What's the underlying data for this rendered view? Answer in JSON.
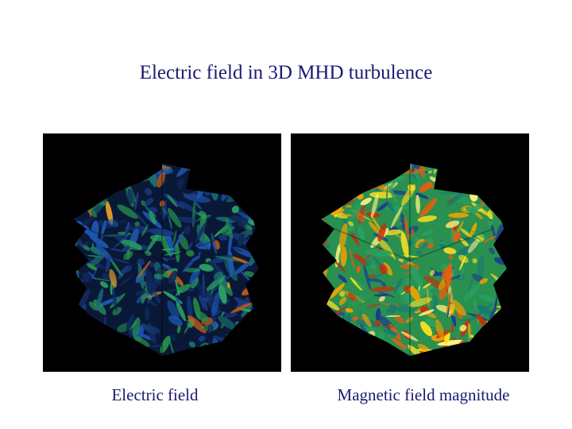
{
  "title": "Electric field in 3D MHD turbulence",
  "panels": [
    {
      "caption": "Electric field"
    },
    {
      "caption": "Magnetic field magnitude"
    }
  ]
}
